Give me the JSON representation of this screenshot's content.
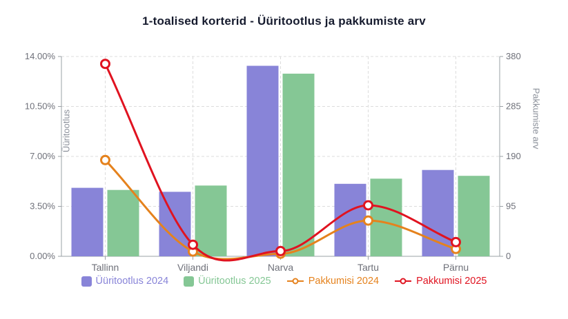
{
  "title": "1-toalised korterid - Üüritootlus ja pakkumiste arv",
  "chart_data": {
    "type": "bar",
    "subtype": "combo-bar-line-dual-axis",
    "categories": [
      "Tallinn",
      "Viljandi",
      "Narva",
      "Tartu",
      "Pärnu"
    ],
    "series": [
      {
        "name": "Üüritootlus 2024",
        "type": "bar",
        "axis": "left",
        "color": "#8884d8",
        "values": [
          4.8,
          4.52,
          13.35,
          5.08,
          6.05
        ]
      },
      {
        "name": "Üüritootlus 2025",
        "type": "bar",
        "axis": "left",
        "color": "#85c795",
        "values": [
          4.65,
          4.96,
          12.8,
          5.44,
          5.64
        ]
      },
      {
        "name": "Pakkumisi 2024",
        "type": "line",
        "axis": "right",
        "color": "#e5821d",
        "values": [
          183,
          9,
          5,
          68,
          14
        ]
      },
      {
        "name": "Pakkumisi 2025",
        "type": "line",
        "axis": "right",
        "color": "#e01320",
        "values": [
          366,
          22,
          10,
          97,
          27
        ]
      }
    ],
    "left_axis": {
      "title": "Üüritootlus",
      "min": 0,
      "max": 14,
      "tick_labels": [
        "0.00%",
        "3.50%",
        "7.00%",
        "10.50%",
        "14.00%"
      ]
    },
    "right_axis": {
      "title": "Pakkumiste arv",
      "min": 0,
      "max": 380,
      "tick_labels": [
        "0",
        "95",
        "190",
        "285",
        "380"
      ]
    },
    "grid": "horizontal-and-vertical-dashed",
    "legend_position": "bottom"
  },
  "colors": {
    "background": "#ffffff",
    "title_text": "#161b2e",
    "axis_label": "#6e7079",
    "axis_line": "#9aa0a6",
    "gridline": "#dcdcdc",
    "marker_fill": "#ffffff"
  }
}
